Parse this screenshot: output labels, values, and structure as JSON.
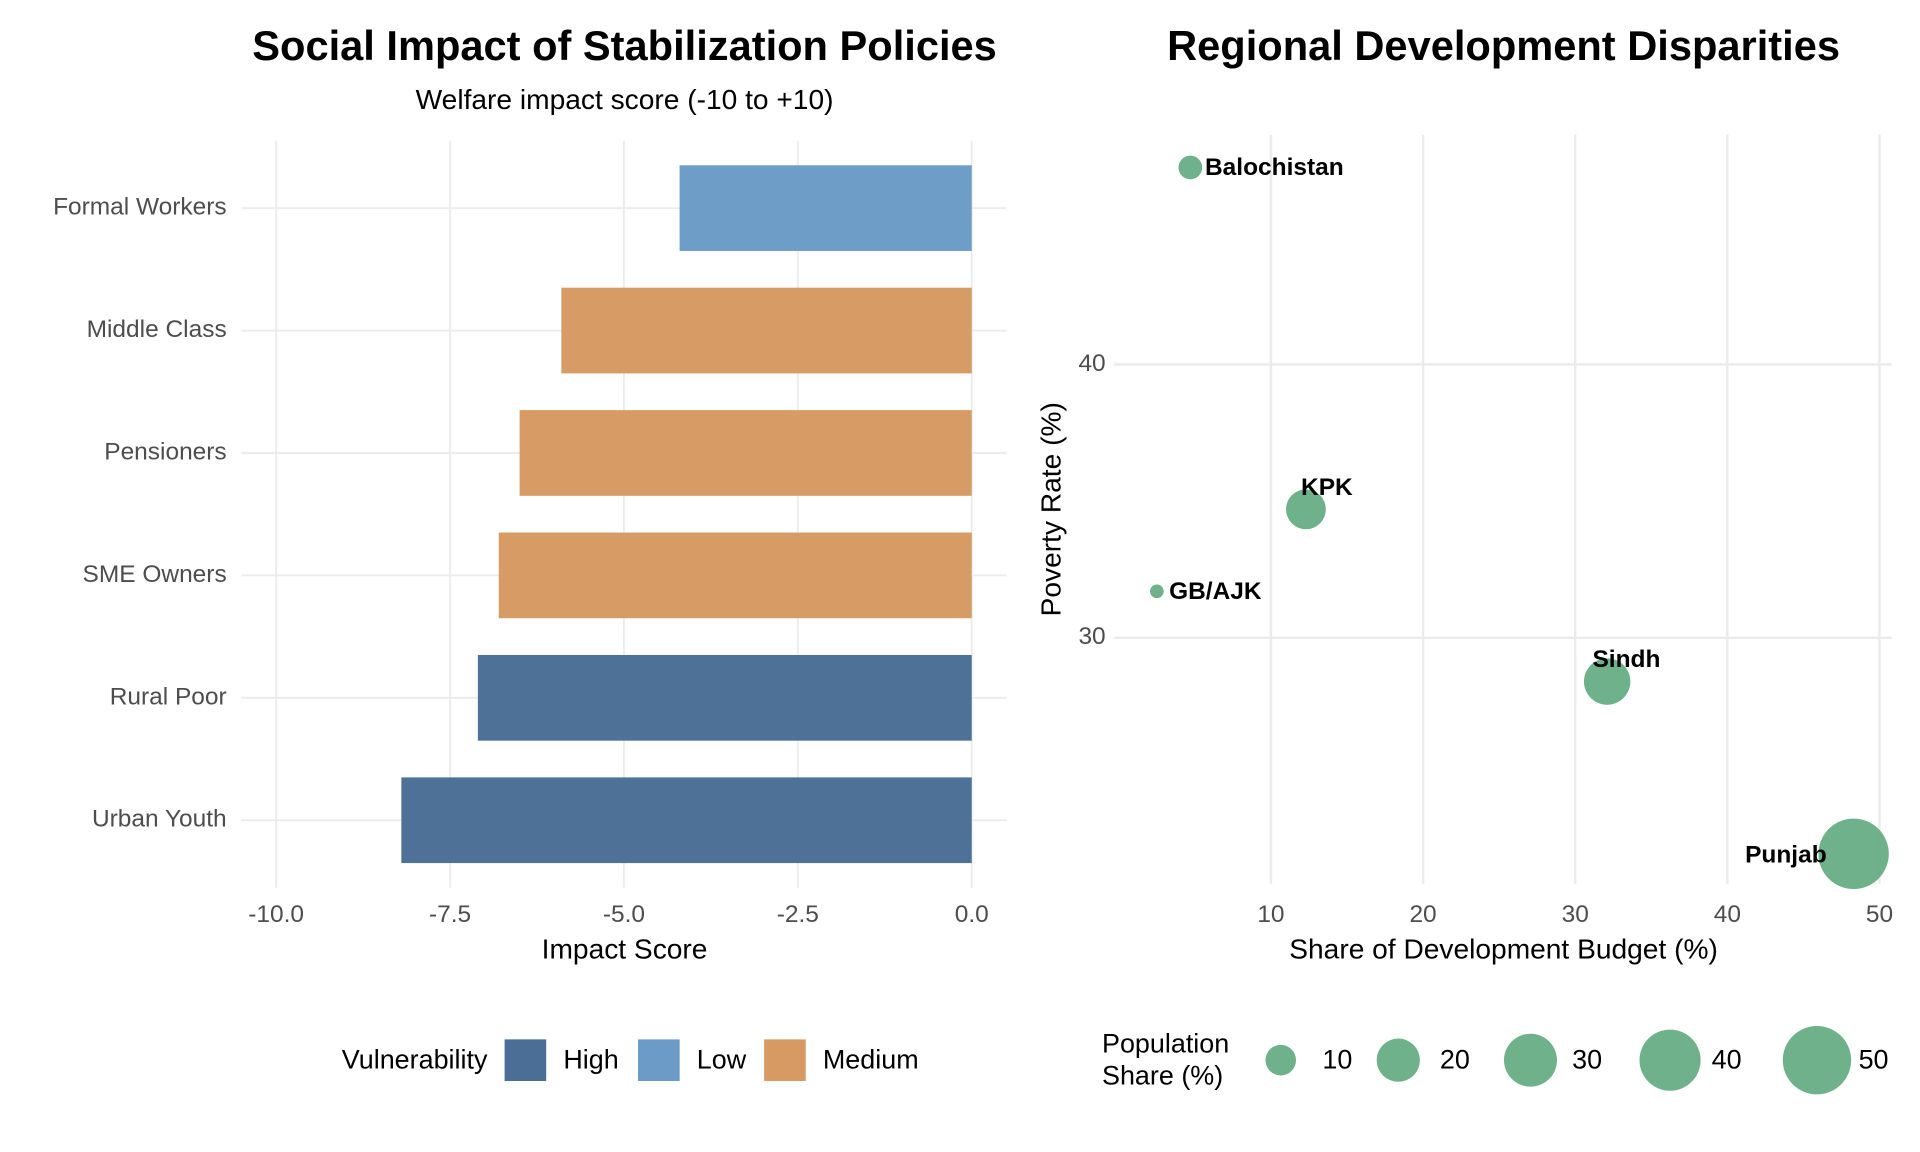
{
  "chart_data": [
    {
      "type": "hbar",
      "title": "Social Impact of Stabilization Policies",
      "subtitle": "Welfare impact score (-10 to +10)",
      "x_label": "Impact Score",
      "categories": [
        "Formal Workers",
        "Middle Class",
        "Pensioners",
        "SME Owners",
        "Rural Poor",
        "Urban Youth"
      ],
      "series": [
        {
          "name": "High",
          "color": "#4a6e96",
          "values": [
            null,
            null,
            null,
            null,
            -7.1,
            -8.2
          ]
        },
        {
          "name": "Low",
          "color": "#6b9bc6",
          "values": [
            -4.2,
            null,
            null,
            null,
            null,
            null
          ]
        },
        {
          "name": "Medium",
          "color": "#d69a62",
          "values": [
            null,
            -5.9,
            -6.5,
            -6.8,
            null,
            null
          ]
        }
      ],
      "legend_title": "Vulnerability",
      "xlim": [
        -10.5,
        0.5
      ],
      "xticks": [
        {
          "value": -10,
          "label": "-10.0"
        },
        {
          "value": -7.5,
          "label": "-7.5"
        },
        {
          "value": -5,
          "label": "-5.0"
        },
        {
          "value": -2.5,
          "label": "-2.5"
        },
        {
          "value": 0,
          "label": "0.0"
        }
      ],
      "grid": true
    },
    {
      "type": "bubble",
      "title": "Regional Development Disparities",
      "x_label": "Share of Development Budget (%)",
      "y_label": "Poverty Rate (%)",
      "labels": [
        "Balochistan",
        "KPK",
        "GB/AJK",
        "Sindh",
        "Punjab"
      ],
      "x": [
        4.7,
        12.3,
        2.5,
        32.1,
        48.3
      ],
      "values": [
        47.2,
        34.7,
        31.7,
        28.4,
        22.1
      ],
      "sizes": [
        6,
        17,
        2,
        23,
        53
      ],
      "color": "#66ad84",
      "size_legend_title": [
        "Population",
        "Share (%)"
      ],
      "size_legend_values": [
        10,
        20,
        30,
        40,
        50
      ],
      "xlim": [
        -0.3,
        50.8
      ],
      "ylim": [
        21,
        48.4
      ],
      "xticks": [
        10,
        20,
        30,
        40,
        50
      ],
      "yticks": [
        30,
        40
      ],
      "grid": true
    }
  ]
}
